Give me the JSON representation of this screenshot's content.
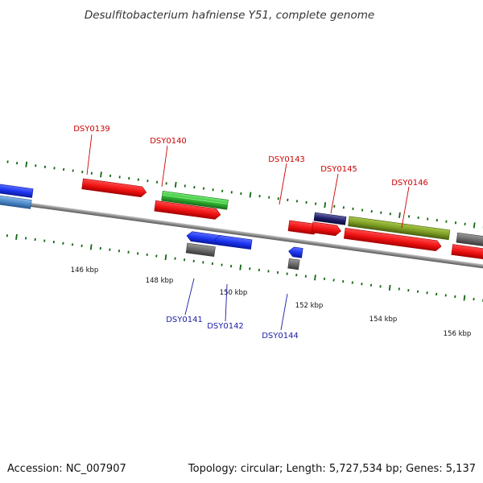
{
  "title": "Desulfitobacterium hafniense Y51, complete genome",
  "footer": {
    "accession": "Accession: NC_007907",
    "summary": "Topology: circular; Length: 5,727,534 bp; Genes: 5,137"
  },
  "scale": {
    "unit": "kbp",
    "labels": [
      "146 kbp",
      "148 kbp",
      "150 kbp",
      "152 kbp",
      "154 kbp",
      "156 kbp"
    ]
  },
  "genes": [
    {
      "label": "DSY0139",
      "strand": "forward",
      "color": "#cc0000"
    },
    {
      "label": "DSY0140",
      "strand": "forward",
      "color": "#cc0000"
    },
    {
      "label": "DSY0141",
      "strand": "reverse",
      "color": "#1a1aa6"
    },
    {
      "label": "DSY0142",
      "strand": "reverse",
      "color": "#1a1aa6"
    },
    {
      "label": "DSY0143",
      "strand": "forward",
      "color": "#cc0000"
    },
    {
      "label": "DSY0144",
      "strand": "reverse",
      "color": "#1a1aa6"
    },
    {
      "label": "DSY0145",
      "strand": "forward",
      "color": "#cc0000"
    },
    {
      "label": "DSY0146",
      "strand": "forward",
      "color": "#cc0000"
    }
  ],
  "colors": {
    "cds_forward": "#ee1111",
    "cds_reverse": "#1a33ee",
    "gene_gray": "#666666",
    "feature_green": "#33bb33",
    "feature_olive": "#7a9a22",
    "feature_navy": "#22226e",
    "feature_lightblue": "#4a86c8",
    "tick": "#116611",
    "backbone": "#999999"
  }
}
